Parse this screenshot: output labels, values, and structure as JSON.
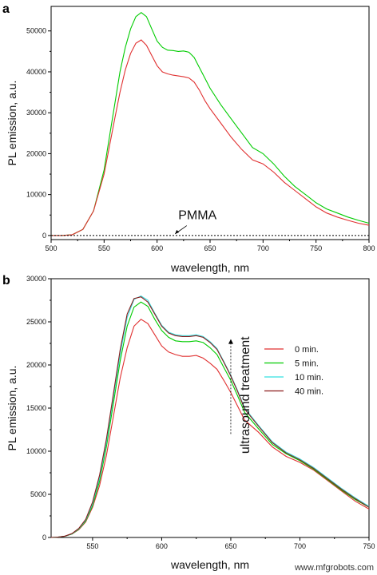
{
  "panels": {
    "a": {
      "label": "a"
    },
    "b": {
      "label": "b"
    }
  },
  "chart_data": [
    {
      "type": "line",
      "panel": "a",
      "xlabel": "wavelength, nm",
      "ylabel": "PL emission, a.u.",
      "xlim": [
        500,
        800
      ],
      "ylim": [
        -1000,
        56000
      ],
      "xticks": [
        500,
        550,
        600,
        650,
        700,
        750,
        800
      ],
      "yticks": [
        0,
        10000,
        20000,
        30000,
        40000,
        50000
      ],
      "annotation": {
        "text": "PMMA",
        "arrow_to": [
          617,
          0
        ]
      },
      "series": [
        {
          "color": "#00cc00",
          "x": [
            500,
            510,
            520,
            530,
            540,
            550,
            560,
            565,
            570,
            575,
            580,
            585,
            590,
            595,
            600,
            605,
            610,
            615,
            620,
            625,
            630,
            635,
            640,
            645,
            650,
            660,
            670,
            680,
            690,
            700,
            710,
            720,
            730,
            740,
            750,
            760,
            770,
            780,
            790,
            800
          ],
          "y": [
            0,
            0,
            200,
            1500,
            6000,
            16000,
            32000,
            40000,
            46000,
            50500,
            53500,
            54500,
            53500,
            50500,
            47500,
            46000,
            45300,
            45200,
            45000,
            45100,
            44800,
            43500,
            41000,
            38500,
            36000,
            32000,
            28500,
            25000,
            21500,
            20000,
            17500,
            14500,
            12000,
            10000,
            8000,
            6500,
            5500,
            4500,
            3700,
            3000
          ]
        },
        {
          "color": "#e03030",
          "x": [
            500,
            510,
            520,
            530,
            540,
            550,
            560,
            565,
            570,
            575,
            580,
            585,
            590,
            595,
            600,
            605,
            610,
            615,
            620,
            625,
            630,
            635,
            640,
            645,
            650,
            660,
            670,
            680,
            690,
            700,
            710,
            720,
            730,
            740,
            750,
            760,
            770,
            780,
            790,
            800
          ],
          "y": [
            0,
            0,
            200,
            1500,
            6000,
            15000,
            28500,
            35000,
            40500,
            44500,
            47000,
            47800,
            46500,
            44000,
            41500,
            40000,
            39500,
            39200,
            39000,
            38800,
            38500,
            37500,
            35500,
            33000,
            31000,
            27500,
            24000,
            21000,
            18500,
            17500,
            15500,
            13000,
            11000,
            9000,
            7000,
            5500,
            4500,
            3700,
            3000,
            2500
          ]
        },
        {
          "color": "#000000",
          "dashed": true,
          "x": [
            500,
            800
          ],
          "y": [
            0,
            0
          ]
        }
      ]
    },
    {
      "type": "line",
      "panel": "b",
      "xlabel": "wavelength, nm",
      "ylabel": "PL emission, a.u.",
      "xlim": [
        520,
        750
      ],
      "ylim": [
        0,
        30000
      ],
      "xticks": [
        550,
        600,
        650,
        700,
        750
      ],
      "yticks": [
        0,
        5000,
        10000,
        15000,
        20000,
        25000,
        30000
      ],
      "annotation": {
        "text": "ultrasound treatment",
        "arrow_x": 650,
        "arrow_from": 12000,
        "arrow_to": 23000
      },
      "series": [
        {
          "name": "0 min.",
          "color": "#e03030",
          "x": [
            520,
            525,
            530,
            535,
            540,
            545,
            550,
            555,
            560,
            565,
            570,
            575,
            580,
            585,
            590,
            595,
            600,
            605,
            610,
            615,
            620,
            625,
            630,
            635,
            640,
            645,
            650,
            655,
            660,
            670,
            680,
            690,
            700,
            710,
            720,
            730,
            740,
            750
          ],
          "y": [
            0,
            50,
            150,
            400,
            900,
            1800,
            3500,
            6000,
            9500,
            14000,
            18500,
            22000,
            24500,
            25300,
            24800,
            23500,
            22200,
            21500,
            21200,
            21000,
            21000,
            21100,
            20800,
            20200,
            19500,
            18200,
            16800,
            15200,
            13600,
            12200,
            10500,
            9400,
            8700,
            7800,
            6600,
            5400,
            4200,
            3300
          ]
        },
        {
          "name": "5 min.",
          "color": "#00cc00",
          "x": [
            520,
            525,
            530,
            535,
            540,
            545,
            550,
            555,
            560,
            565,
            570,
            575,
            580,
            585,
            590,
            595,
            600,
            605,
            610,
            615,
            620,
            625,
            630,
            635,
            640,
            645,
            650,
            655,
            660,
            670,
            680,
            690,
            700,
            710,
            720,
            730,
            740,
            750
          ],
          "y": [
            0,
            50,
            150,
            400,
            950,
            1900,
            3700,
            6500,
            10500,
            15500,
            20500,
            24500,
            26700,
            27300,
            26800,
            25300,
            24000,
            23200,
            22800,
            22700,
            22700,
            22800,
            22600,
            22000,
            21200,
            19700,
            18200,
            16400,
            14500,
            12600,
            10800,
            9700,
            8900,
            7900,
            6700,
            5500,
            4400,
            3500
          ]
        },
        {
          "name": "10 min.",
          "color": "#33e0e0",
          "x": [
            520,
            525,
            530,
            535,
            540,
            545,
            550,
            555,
            560,
            565,
            570,
            575,
            580,
            585,
            590,
            595,
            600,
            605,
            610,
            615,
            620,
            625,
            630,
            635,
            640,
            645,
            650,
            655,
            660,
            670,
            680,
            690,
            700,
            710,
            720,
            730,
            740,
            750
          ],
          "y": [
            0,
            50,
            150,
            420,
            1000,
            2000,
            3900,
            6900,
            11000,
            16200,
            21300,
            25500,
            27600,
            28000,
            27500,
            26000,
            24600,
            23800,
            23500,
            23400,
            23400,
            23500,
            23300,
            22700,
            21900,
            20400,
            18800,
            17000,
            15000,
            13000,
            11100,
            9900,
            9100,
            8100,
            6900,
            5700,
            4600,
            3600
          ]
        },
        {
          "name": "40 min.",
          "color": "#8b1a1a",
          "x": [
            520,
            525,
            530,
            535,
            540,
            545,
            550,
            555,
            560,
            565,
            570,
            575,
            580,
            585,
            590,
            595,
            600,
            605,
            610,
            615,
            620,
            625,
            630,
            635,
            640,
            645,
            650,
            655,
            660,
            670,
            680,
            690,
            700,
            710,
            720,
            730,
            740,
            750
          ],
          "y": [
            0,
            50,
            160,
            440,
            1050,
            2100,
            4100,
            7200,
            11400,
            16600,
            21800,
            25900,
            27700,
            27900,
            27300,
            25900,
            24500,
            23700,
            23400,
            23300,
            23300,
            23400,
            23200,
            22600,
            21800,
            20300,
            18700,
            16900,
            14900,
            12900,
            11000,
            9800,
            9000,
            8000,
            6800,
            5600,
            4500,
            3500
          ]
        }
      ]
    }
  ],
  "watermark": "www.mfgrobots.com"
}
